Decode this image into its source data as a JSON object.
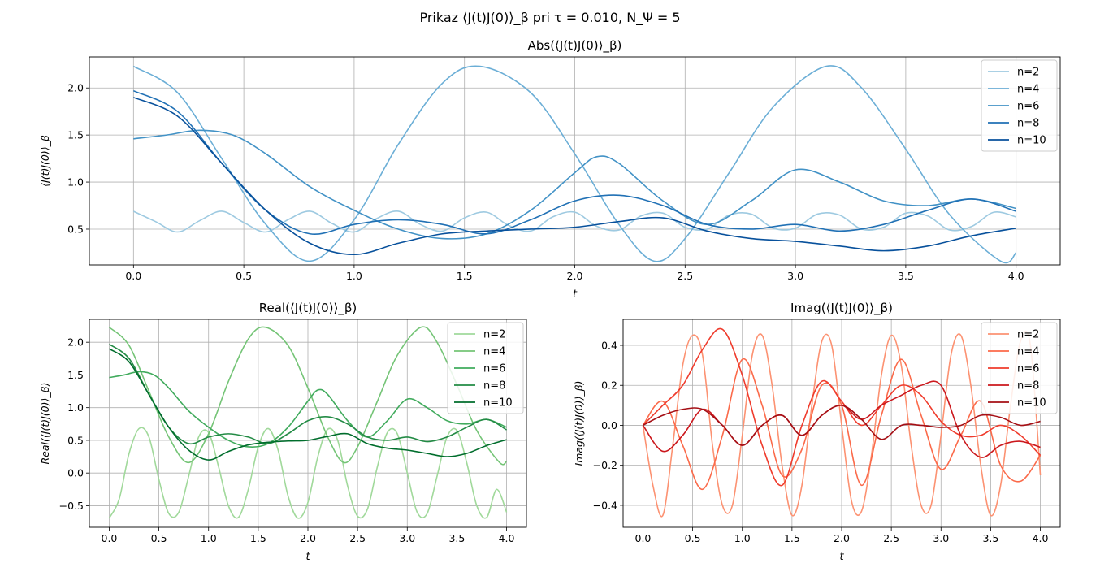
{
  "figure": {
    "suptitle": "Prikaz ⟨J(t)J(0)⟩_β pri τ = 0.010, N_Ψ = 5"
  },
  "chart_data": [
    {
      "id": "abs",
      "type": "line",
      "title": "Abs(⟨J(t)J(0)⟩_β)",
      "xlabel": "t",
      "ylabel": "⟨J(t)J(0)⟩_β",
      "xlim": [
        -0.2,
        4.2
      ],
      "ylim": [
        0.12,
        2.33
      ],
      "xticks": [
        "0.0",
        "0.5",
        "1.0",
        "1.5",
        "2.0",
        "2.5",
        "3.0",
        "3.5",
        "4.0"
      ],
      "yticks": [
        "0.5",
        "1.0",
        "1.5",
        "2.0"
      ],
      "grid": true,
      "legend_position": "top-right",
      "series": [
        {
          "name": "n=2",
          "color": "#9ecae1",
          "x": [
            0,
            0.1,
            0.2,
            0.3,
            0.4,
            0.5,
            0.6,
            0.7,
            0.8,
            0.9,
            1.0,
            1.1,
            1.2,
            1.3,
            1.4,
            1.5,
            1.6,
            1.7,
            1.8,
            1.9,
            2.0,
            2.1,
            2.2,
            2.3,
            2.4,
            2.5,
            2.6,
            2.7,
            2.8,
            2.9,
            3.0,
            3.1,
            3.2,
            3.3,
            3.4,
            3.5,
            3.6,
            3.7,
            3.8,
            3.9,
            4.0
          ],
          "y": [
            0.69,
            0.58,
            0.47,
            0.59,
            0.69,
            0.57,
            0.47,
            0.6,
            0.69,
            0.56,
            0.47,
            0.61,
            0.69,
            0.55,
            0.48,
            0.62,
            0.68,
            0.54,
            0.48,
            0.63,
            0.68,
            0.53,
            0.49,
            0.64,
            0.67,
            0.52,
            0.5,
            0.65,
            0.66,
            0.51,
            0.51,
            0.66,
            0.65,
            0.5,
            0.52,
            0.67,
            0.64,
            0.49,
            0.53,
            0.68,
            0.63
          ]
        },
        {
          "name": "n=4",
          "color": "#6baed6",
          "x": [
            0,
            0.2,
            0.4,
            0.6,
            0.8,
            1.0,
            1.2,
            1.4,
            1.57,
            1.8,
            2.0,
            2.2,
            2.36,
            2.5,
            2.7,
            2.9,
            3.14,
            3.3,
            3.5,
            3.7,
            3.93,
            4.0
          ],
          "y": [
            2.23,
            1.95,
            1.25,
            0.55,
            0.16,
            0.6,
            1.4,
            2.05,
            2.23,
            1.95,
            1.3,
            0.55,
            0.16,
            0.4,
            1.1,
            1.8,
            2.23,
            2.0,
            1.35,
            0.65,
            0.16,
            0.25
          ]
        },
        {
          "name": "n=6",
          "color": "#4292c6",
          "x": [
            0,
            0.15,
            0.3,
            0.45,
            0.6,
            0.8,
            1.0,
            1.2,
            1.4,
            1.6,
            1.8,
            2.0,
            2.1,
            2.2,
            2.4,
            2.6,
            2.8,
            3.0,
            3.2,
            3.4,
            3.6,
            3.8,
            4.0
          ],
          "y": [
            1.46,
            1.5,
            1.55,
            1.5,
            1.3,
            0.95,
            0.7,
            0.5,
            0.4,
            0.45,
            0.7,
            1.1,
            1.27,
            1.2,
            0.8,
            0.55,
            0.8,
            1.13,
            1.0,
            0.8,
            0.75,
            0.82,
            0.72
          ]
        },
        {
          "name": "n=8",
          "color": "#2171b5",
          "x": [
            0,
            0.2,
            0.4,
            0.6,
            0.8,
            1.0,
            1.2,
            1.4,
            1.6,
            1.8,
            2.0,
            2.2,
            2.4,
            2.6,
            2.8,
            3.0,
            3.2,
            3.4,
            3.6,
            3.8,
            4.0
          ],
          "y": [
            1.97,
            1.75,
            1.2,
            0.7,
            0.45,
            0.55,
            0.6,
            0.55,
            0.45,
            0.6,
            0.8,
            0.86,
            0.75,
            0.55,
            0.5,
            0.55,
            0.48,
            0.55,
            0.7,
            0.82,
            0.69
          ]
        },
        {
          "name": "n=10",
          "color": "#08519c",
          "x": [
            0,
            0.2,
            0.4,
            0.6,
            0.8,
            1.0,
            1.2,
            1.4,
            1.6,
            1.8,
            2.0,
            2.2,
            2.4,
            2.6,
            2.8,
            3.0,
            3.2,
            3.4,
            3.6,
            3.8,
            4.0
          ],
          "y": [
            1.9,
            1.7,
            1.2,
            0.7,
            0.35,
            0.23,
            0.35,
            0.45,
            0.48,
            0.5,
            0.52,
            0.58,
            0.62,
            0.48,
            0.4,
            0.37,
            0.32,
            0.27,
            0.32,
            0.43,
            0.51
          ]
        }
      ]
    },
    {
      "id": "real",
      "type": "line",
      "title": "Real(⟨J(t)J(0)⟩_β)",
      "xlabel": "t",
      "ylabel": "Real(⟨J(t)J(0)⟩_β)",
      "xlim": [
        -0.2,
        4.2
      ],
      "ylim": [
        -0.83,
        2.35
      ],
      "xticks": [
        "0.0",
        "0.5",
        "1.0",
        "1.5",
        "2.0",
        "2.5",
        "3.0",
        "3.5",
        "4.0"
      ],
      "yticks": [
        "−0.5",
        "0.0",
        "0.5",
        "1.0",
        "1.5",
        "2.0"
      ],
      "grid": true,
      "legend_position": "top-right",
      "series": [
        {
          "name": "n=2",
          "color": "#a1d99b",
          "x": [
            0,
            0.1,
            0.2,
            0.3,
            0.4,
            0.5,
            0.6,
            0.7,
            0.8,
            0.9,
            1.0,
            1.1,
            1.2,
            1.3,
            1.4,
            1.5,
            1.6,
            1.7,
            1.8,
            1.9,
            2.0,
            2.1,
            2.2,
            2.3,
            2.4,
            2.5,
            2.6,
            2.7,
            2.8,
            2.9,
            3.0,
            3.1,
            3.2,
            3.3,
            3.4,
            3.5,
            3.6,
            3.7,
            3.8,
            3.9,
            4.0
          ],
          "y": [
            -0.69,
            -0.4,
            0.3,
            0.68,
            0.55,
            -0.1,
            -0.62,
            -0.6,
            -0.05,
            0.55,
            0.62,
            0.1,
            -0.5,
            -0.68,
            -0.25,
            0.4,
            0.68,
            0.35,
            -0.35,
            -0.69,
            -0.45,
            0.25,
            0.67,
            0.5,
            -0.2,
            -0.66,
            -0.55,
            0.1,
            0.62,
            0.6,
            0.0,
            -0.6,
            -0.62,
            -0.05,
            0.55,
            0.65,
            0.15,
            -0.5,
            -0.68,
            -0.25,
            -0.6
          ]
        },
        {
          "name": "n=4",
          "color": "#74c476",
          "x": [
            0,
            0.2,
            0.4,
            0.6,
            0.8,
            1.0,
            1.2,
            1.4,
            1.57,
            1.8,
            2.0,
            2.2,
            2.36,
            2.5,
            2.7,
            2.9,
            3.14,
            3.3,
            3.5,
            3.7,
            3.93,
            4.0
          ],
          "y": [
            2.23,
            1.95,
            1.25,
            0.55,
            0.16,
            0.6,
            1.4,
            2.05,
            2.23,
            1.95,
            1.3,
            0.55,
            0.16,
            0.4,
            1.1,
            1.8,
            2.23,
            2.0,
            1.35,
            0.65,
            0.16,
            0.18
          ]
        },
        {
          "name": "n=6",
          "color": "#41ab5d",
          "x": [
            0,
            0.15,
            0.3,
            0.45,
            0.6,
            0.8,
            1.0,
            1.2,
            1.4,
            1.6,
            1.8,
            2.0,
            2.1,
            2.2,
            2.4,
            2.6,
            2.8,
            3.0,
            3.2,
            3.4,
            3.6,
            3.8,
            4.0
          ],
          "y": [
            1.46,
            1.5,
            1.55,
            1.5,
            1.3,
            0.95,
            0.7,
            0.5,
            0.4,
            0.45,
            0.7,
            1.1,
            1.27,
            1.2,
            0.8,
            0.55,
            0.8,
            1.13,
            1.0,
            0.8,
            0.75,
            0.82,
            0.7
          ]
        },
        {
          "name": "n=8",
          "color": "#238b45",
          "x": [
            0,
            0.2,
            0.4,
            0.6,
            0.8,
            1.0,
            1.2,
            1.4,
            1.6,
            1.8,
            2.0,
            2.2,
            2.4,
            2.6,
            2.8,
            3.0,
            3.2,
            3.4,
            3.6,
            3.8,
            4.0
          ],
          "y": [
            1.97,
            1.75,
            1.2,
            0.7,
            0.45,
            0.55,
            0.6,
            0.55,
            0.45,
            0.6,
            0.8,
            0.86,
            0.75,
            0.55,
            0.5,
            0.55,
            0.48,
            0.55,
            0.7,
            0.82,
            0.66
          ]
        },
        {
          "name": "n=10",
          "color": "#006d2c",
          "x": [
            0,
            0.2,
            0.4,
            0.6,
            0.8,
            1.0,
            1.2,
            1.4,
            1.6,
            1.8,
            2.0,
            2.2,
            2.4,
            2.6,
            2.8,
            3.0,
            3.2,
            3.4,
            3.6,
            3.8,
            4.0
          ],
          "y": [
            1.9,
            1.7,
            1.2,
            0.7,
            0.35,
            0.2,
            0.33,
            0.43,
            0.47,
            0.49,
            0.5,
            0.56,
            0.6,
            0.45,
            0.38,
            0.35,
            0.3,
            0.25,
            0.3,
            0.42,
            0.51
          ]
        }
      ]
    },
    {
      "id": "imag",
      "type": "line",
      "title": "Imag(⟨J(t)J(0)⟩_β)",
      "xlabel": "t",
      "ylabel": "Imag(⟨J(t)J(0)⟩_β)",
      "xlim": [
        -0.2,
        4.2
      ],
      "ylim": [
        -0.51,
        0.53
      ],
      "xticks": [
        "0.0",
        "0.5",
        "1.0",
        "1.5",
        "2.0",
        "2.5",
        "3.0",
        "3.5",
        "4.0"
      ],
      "yticks": [
        "−0.4",
        "−0.2",
        "0.0",
        "0.2",
        "0.4"
      ],
      "grid": true,
      "legend_position": "top-right",
      "series": [
        {
          "name": "n=2",
          "color": "#fc9272",
          "x": [
            0,
            0.1,
            0.2,
            0.3,
            0.4,
            0.5,
            0.6,
            0.7,
            0.8,
            0.9,
            1.0,
            1.1,
            1.2,
            1.3,
            1.4,
            1.5,
            1.6,
            1.7,
            1.8,
            1.9,
            2.0,
            2.1,
            2.2,
            2.3,
            2.4,
            2.5,
            2.6,
            2.7,
            2.8,
            2.9,
            3.0,
            3.1,
            3.2,
            3.3,
            3.4,
            3.5,
            3.6,
            3.7,
            3.8,
            3.9,
            4.0
          ],
          "y": [
            0.0,
            -0.3,
            -0.45,
            -0.1,
            0.3,
            0.45,
            0.35,
            -0.1,
            -0.4,
            -0.4,
            -0.05,
            0.35,
            0.45,
            0.2,
            -0.2,
            -0.45,
            -0.3,
            0.1,
            0.42,
            0.4,
            0.0,
            -0.38,
            -0.43,
            -0.15,
            0.25,
            0.45,
            0.3,
            -0.1,
            -0.4,
            -0.4,
            -0.05,
            0.35,
            0.45,
            0.2,
            -0.2,
            -0.45,
            -0.3,
            0.1,
            0.42,
            0.4,
            -0.25
          ]
        },
        {
          "name": "n=4",
          "color": "#fb6a4a",
          "x": [
            0,
            0.2,
            0.4,
            0.6,
            0.8,
            1.0,
            1.2,
            1.4,
            1.6,
            1.8,
            2.0,
            2.2,
            2.4,
            2.6,
            2.8,
            3.0,
            3.2,
            3.4,
            3.6,
            3.8,
            4.0
          ],
          "y": [
            0.0,
            0.12,
            -0.1,
            -0.32,
            -0.05,
            0.33,
            0.1,
            -0.25,
            -0.12,
            0.2,
            0.1,
            -0.3,
            0.05,
            0.33,
            0.05,
            -0.22,
            -0.05,
            0.12,
            -0.2,
            -0.28,
            -0.15
          ]
        },
        {
          "name": "n=6",
          "color": "#ef3b2c",
          "x": [
            0,
            0.2,
            0.4,
            0.6,
            0.8,
            1.0,
            1.2,
            1.4,
            1.6,
            1.8,
            2.0,
            2.2,
            2.4,
            2.6,
            2.8,
            3.0,
            3.2,
            3.4,
            3.6,
            3.8,
            4.0
          ],
          "y": [
            0.0,
            0.1,
            0.2,
            0.38,
            0.48,
            0.25,
            -0.1,
            -0.3,
            0.0,
            0.22,
            0.12,
            0.0,
            0.1,
            0.2,
            0.15,
            0.02,
            -0.05,
            -0.05,
            0.0,
            -0.05,
            -0.15
          ]
        },
        {
          "name": "n=8",
          "color": "#cb181d",
          "x": [
            0,
            0.2,
            0.4,
            0.6,
            0.8,
            1.0,
            1.2,
            1.4,
            1.6,
            1.8,
            2.0,
            2.2,
            2.4,
            2.6,
            2.8,
            3.0,
            3.2,
            3.4,
            3.6,
            3.8,
            4.0
          ],
          "y": [
            0.0,
            -0.13,
            -0.05,
            0.08,
            0.0,
            -0.1,
            0.0,
            0.05,
            -0.05,
            0.05,
            0.1,
            0.03,
            0.1,
            0.15,
            0.2,
            0.2,
            -0.05,
            -0.16,
            -0.1,
            -0.08,
            -0.11
          ]
        },
        {
          "name": "n=10",
          "color": "#a50f15",
          "x": [
            0,
            0.2,
            0.4,
            0.6,
            0.8,
            1.0,
            1.2,
            1.4,
            1.6,
            1.8,
            2.0,
            2.2,
            2.4,
            2.6,
            2.8,
            3.0,
            3.2,
            3.4,
            3.6,
            3.8,
            4.0
          ],
          "y": [
            0.0,
            0.05,
            0.08,
            0.08,
            0.0,
            -0.1,
            0.0,
            0.05,
            -0.05,
            0.05,
            0.1,
            0.03,
            -0.07,
            0.0,
            0.0,
            -0.01,
            0.0,
            0.05,
            0.04,
            0.0,
            0.02
          ]
        }
      ]
    }
  ]
}
